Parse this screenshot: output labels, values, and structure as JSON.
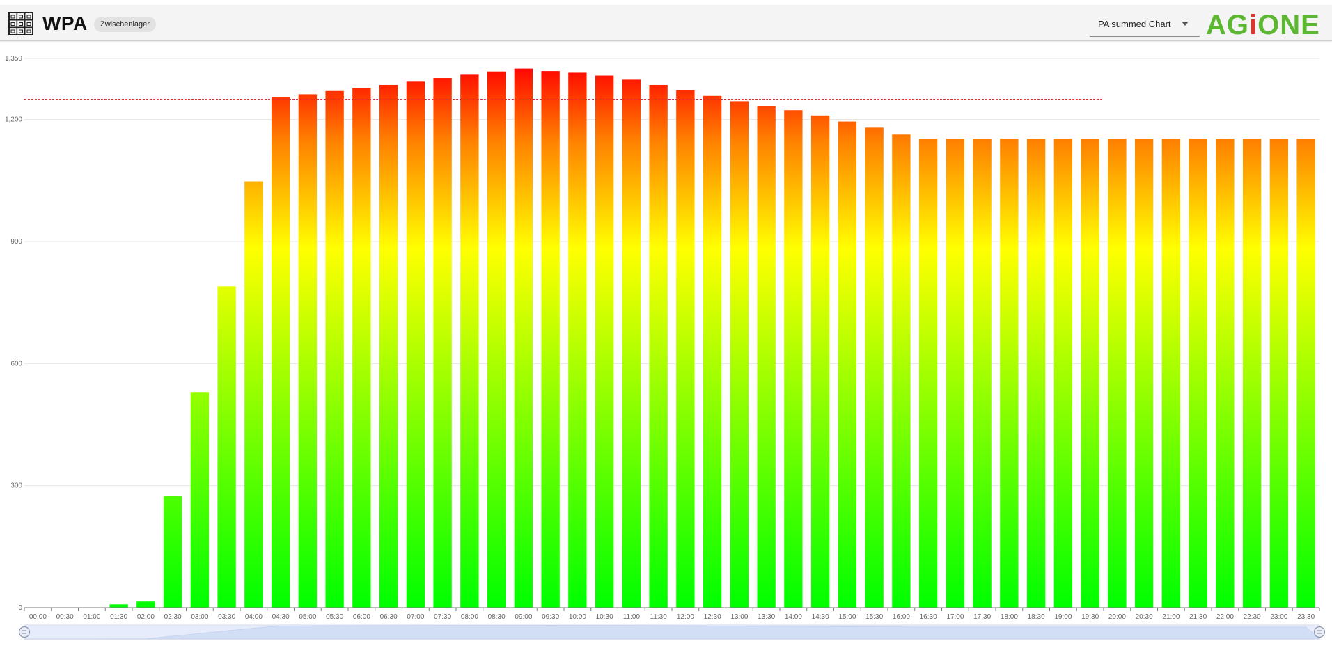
{
  "header": {
    "title": "WPA",
    "badge": "Zwischenlager",
    "chart_selector": {
      "selected": "PA summed Chart"
    },
    "logo": {
      "prefix": "AG",
      "accent": "i",
      "suffix": "ONE"
    }
  },
  "colors": {
    "bar_top": "#ff0000",
    "bar_mid_upper": "#ff8000",
    "bar_mid": "#ffff00",
    "bar_low": "#80ff00",
    "bar_bottom": "#00ff00",
    "threshold_line": "#e03030",
    "logo_green": "#5bb830",
    "logo_red": "#e0342a",
    "slider_fill": "#d9e3fa"
  },
  "chart_data": {
    "type": "bar",
    "categories": [
      "00:00",
      "00:30",
      "01:00",
      "01:30",
      "02:00",
      "02:30",
      "03:00",
      "03:30",
      "04:00",
      "04:30",
      "05:00",
      "05:30",
      "06:00",
      "06:30",
      "07:00",
      "07:30",
      "08:00",
      "08:30",
      "09:00",
      "09:30",
      "10:00",
      "10:30",
      "11:00",
      "11:30",
      "12:00",
      "12:30",
      "13:00",
      "13:30",
      "14:00",
      "14:30",
      "15:00",
      "15:30",
      "16:00",
      "16:30",
      "17:00",
      "17:30",
      "18:00",
      "18:30",
      "19:00",
      "19:30",
      "20:00",
      "20:30",
      "21:00",
      "21:30",
      "22:00",
      "22:30",
      "23:00",
      "23:30"
    ],
    "values": [
      0,
      0,
      0,
      8,
      15,
      275,
      530,
      790,
      1048,
      1255,
      1262,
      1270,
      1278,
      1285,
      1293,
      1302,
      1310,
      1318,
      1325,
      1319,
      1315,
      1308,
      1298,
      1285,
      1272,
      1258,
      1245,
      1232,
      1223,
      1210,
      1195,
      1180,
      1163,
      1153,
      1153,
      1153,
      1153,
      1153,
      1153,
      1153,
      1153,
      1153,
      1153,
      1153,
      1153,
      1153,
      1153,
      1153
    ],
    "y_ticks": [
      "0",
      "300",
      "600",
      "900",
      "1,200",
      "1,350"
    ],
    "y_tick_values": [
      0,
      300,
      600,
      900,
      1200,
      1350
    ],
    "ylim": [
      0,
      1350
    ],
    "threshold": {
      "value": 1250,
      "style": "dashed",
      "from_category": "00:00",
      "to_category": "19:30"
    },
    "grid": true,
    "legend": "none",
    "title": "",
    "xlabel": "",
    "ylabel": "",
    "data_zoom": {
      "start": 0,
      "end": 1
    }
  }
}
